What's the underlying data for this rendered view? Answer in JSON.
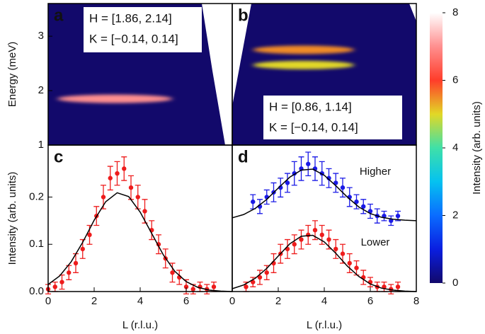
{
  "colorbar": {
    "label": "Intensity (arb. units)",
    "lim": [
      0,
      8
    ],
    "ticks": [
      0,
      2,
      4,
      6,
      8
    ],
    "colormap": [
      "#12096b",
      "#0a1ee0",
      "#0a6cff",
      "#05c2f0",
      "#3fe0a8",
      "#e2d826",
      "#ff3d2a",
      "#ff8f8f",
      "#ffffff"
    ]
  },
  "chart_data": [
    {
      "type": "heatmap",
      "panel_label": "a",
      "ylabel": "Energy (meV)",
      "xlim": [
        0,
        8
      ],
      "ylim": [
        1,
        3.6
      ],
      "yticks": [
        1,
        2,
        3
      ],
      "annotations": [
        "H = [1.86, 2.14]",
        "K = [−0.14, 0.14]"
      ],
      "bands": [
        {
          "energy": 1.85,
          "L_range": [
            0.4,
            5.4
          ],
          "intensity": 7
        }
      ]
    },
    {
      "type": "heatmap",
      "panel_label": "b",
      "xlim": [
        0,
        8
      ],
      "ylim": [
        1,
        3.6
      ],
      "annotations": [
        "H = [0.86, 1.14]",
        "K = [−0.14, 0.14]"
      ],
      "bands": [
        {
          "energy": 2.75,
          "L_range": [
            0.9,
            5.3
          ],
          "intensity": 5.5
        },
        {
          "energy": 2.47,
          "L_range": [
            0.9,
            5.3
          ],
          "intensity": 5
        }
      ]
    },
    {
      "type": "scatter",
      "panel_label": "c",
      "ylabel": "Intensity (arb. units)",
      "xlabel": "L (r.l.u.)",
      "xlim": [
        0,
        8
      ],
      "ylim": [
        0,
        0.31
      ],
      "xticks": [
        0,
        2,
        4,
        6
      ],
      "yticks": [
        {
          "value": 0,
          "label": "0.0"
        },
        {
          "value": 0.1,
          "label": "0.1"
        },
        {
          "value": 0.2,
          "label": "0.2"
        }
      ],
      "fit_x": [
        0,
        0.5,
        1,
        1.5,
        2,
        2.5,
        3,
        3.5,
        4,
        4.5,
        5,
        5.5,
        6,
        6.5,
        7,
        7.5,
        8
      ],
      "series": [
        {
          "color": "#ee1c1c",
          "x": [
            0,
            0.3,
            0.6,
            0.9,
            1.2,
            1.5,
            1.8,
            2.1,
            2.4,
            2.7,
            3.0,
            3.3,
            3.6,
            3.9,
            4.2,
            4.5,
            4.8,
            5.1,
            5.4,
            5.7,
            6.0,
            6.3,
            6.6,
            6.9,
            7.2
          ],
          "values": [
            0.005,
            0.01,
            0.02,
            0.04,
            0.06,
            0.09,
            0.12,
            0.16,
            0.2,
            0.24,
            0.25,
            0.26,
            0.22,
            0.2,
            0.17,
            0.13,
            0.1,
            0.07,
            0.04,
            0.03,
            0.01,
            0.005,
            0.01,
            0.005,
            0.01
          ],
          "errors": [
            0.01,
            0.01,
            0.015,
            0.015,
            0.02,
            0.02,
            0.02,
            0.02,
            0.025,
            0.025,
            0.025,
            0.025,
            0.025,
            0.025,
            0.025,
            0.02,
            0.02,
            0.02,
            0.02,
            0.015,
            0.015,
            0.01,
            0.01,
            0.01,
            0.01
          ],
          "fit_values": [
            0.015,
            0.033,
            0.063,
            0.104,
            0.151,
            0.19,
            0.209,
            0.201,
            0.168,
            0.123,
            0.078,
            0.043,
            0.021,
            0.009,
            0.003,
            0.001,
            0
          ]
        }
      ]
    },
    {
      "type": "scatter",
      "panel_label": "d",
      "xlabel": "L (r.l.u.)",
      "xlim": [
        0,
        8
      ],
      "ylim": [
        0,
        0.31
      ],
      "xticks": [
        0,
        2,
        4,
        6,
        8
      ],
      "fit_x": [
        0,
        0.5,
        1,
        1.5,
        2,
        2.5,
        3,
        3.5,
        4,
        4.5,
        5,
        5.5,
        6,
        6.5,
        7,
        7.5,
        8
      ],
      "series": [
        {
          "name": "Higher",
          "color": "#1a1ae6",
          "x": [
            0.9,
            1.2,
            1.5,
            1.8,
            2.1,
            2.4,
            2.7,
            3.0,
            3.3,
            3.6,
            3.9,
            4.2,
            4.5,
            4.8,
            5.1,
            5.4,
            5.7,
            6.0,
            6.3,
            6.6,
            6.9,
            7.2
          ],
          "values": [
            0.19,
            0.18,
            0.2,
            0.21,
            0.22,
            0.23,
            0.25,
            0.26,
            0.27,
            0.26,
            0.25,
            0.24,
            0.23,
            0.22,
            0.2,
            0.19,
            0.18,
            0.17,
            0.16,
            0.16,
            0.15,
            0.16
          ],
          "errors": [
            0.015,
            0.015,
            0.015,
            0.02,
            0.02,
            0.02,
            0.025,
            0.025,
            0.025,
            0.025,
            0.025,
            0.02,
            0.02,
            0.02,
            0.02,
            0.015,
            0.015,
            0.015,
            0.015,
            0.01,
            0.01,
            0.01
          ],
          "fit_values": [
            0.156,
            0.163,
            0.176,
            0.195,
            0.219,
            0.242,
            0.257,
            0.259,
            0.246,
            0.224,
            0.2,
            0.179,
            0.165,
            0.157,
            0.153,
            0.151,
            0.15
          ]
        },
        {
          "name": "Lower",
          "color": "#ee1c1c",
          "x": [
            0.6,
            0.9,
            1.2,
            1.5,
            1.8,
            2.1,
            2.4,
            2.7,
            3.0,
            3.3,
            3.6,
            3.9,
            4.2,
            4.5,
            4.8,
            5.1,
            5.4,
            5.7,
            6.0,
            6.3,
            6.6,
            6.9,
            7.2
          ],
          "values": [
            0.01,
            0.02,
            0.03,
            0.04,
            0.06,
            0.08,
            0.09,
            0.1,
            0.11,
            0.12,
            0.13,
            0.12,
            0.11,
            0.09,
            0.08,
            0.06,
            0.05,
            0.03,
            0.02,
            0.01,
            0.01,
            0.005,
            0.01
          ],
          "errors": [
            0.01,
            0.01,
            0.015,
            0.015,
            0.02,
            0.02,
            0.02,
            0.02,
            0.02,
            0.02,
            0.02,
            0.02,
            0.02,
            0.02,
            0.02,
            0.02,
            0.015,
            0.015,
            0.01,
            0.01,
            0.01,
            0.01,
            0.01
          ],
          "fit_values": [
            0.006,
            0.014,
            0.028,
            0.049,
            0.075,
            0.101,
            0.117,
            0.119,
            0.105,
            0.081,
            0.054,
            0.032,
            0.016,
            0.007,
            0.003,
            0.001,
            0
          ]
        }
      ]
    }
  ]
}
